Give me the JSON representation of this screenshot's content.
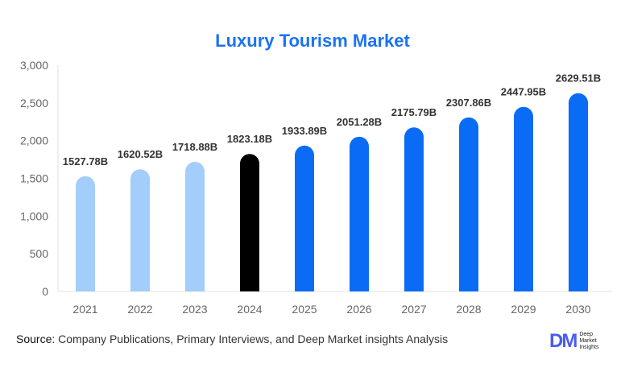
{
  "chart_data": {
    "type": "bar",
    "title": "Luxury Tourism Market",
    "categories": [
      "2021",
      "2022",
      "2023",
      "2024",
      "2025",
      "2026",
      "2027",
      "2028",
      "2029",
      "2030"
    ],
    "values": [
      1527.78,
      1620.52,
      1718.88,
      1823.18,
      1933.89,
      2051.28,
      2175.79,
      2307.86,
      2447.95,
      2629.51
    ],
    "data_labels": [
      "1527.78B",
      "1620.52B",
      "1718.88B",
      "1823.18B",
      "1933.89B",
      "2051.28B",
      "2175.79B",
      "2307.86B",
      "2447.95B",
      "2629.51B"
    ],
    "bar_colors": [
      "#a3cdfb",
      "#a3cdfb",
      "#a3cdfb",
      "#000000",
      "#0a6cf5",
      "#0a6cf5",
      "#0a6cf5",
      "#0a6cf5",
      "#0a6cf5",
      "#0a6cf5"
    ],
    "ylim": [
      0,
      3000
    ],
    "yticks": [
      0,
      500,
      1000,
      1500,
      2000,
      2500,
      3000
    ],
    "ytick_labels": [
      "0",
      "500",
      "1,000",
      "1,500",
      "2,000",
      "2,500",
      "3,000"
    ],
    "grid": false,
    "xlabel": "",
    "ylabel": ""
  },
  "footer": {
    "source_label": "Source",
    "source_text": ": Company Publications, Primary Interviews, and Deep Market insights Analysis",
    "logo_mark": "DM",
    "logo_text": "Deep Market Insights"
  }
}
